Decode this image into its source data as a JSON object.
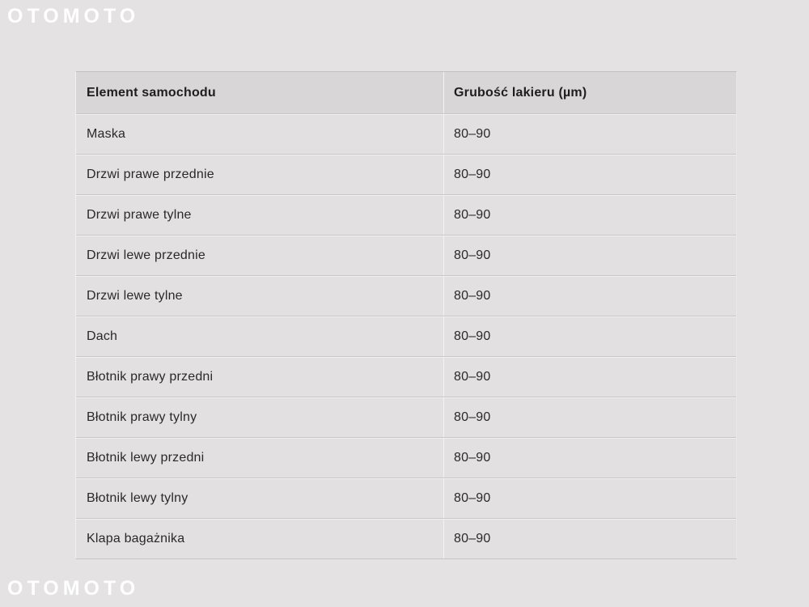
{
  "watermark": {
    "text": "OTOMOTO"
  },
  "table": {
    "columns": {
      "element": "Element samochodu",
      "value": "Grubość lakieru (µm)"
    },
    "rows": [
      {
        "element": "Maska",
        "value": "80–90"
      },
      {
        "element": "Drzwi prawe przednie",
        "value": "80–90"
      },
      {
        "element": "Drzwi prawe tylne",
        "value": "80–90"
      },
      {
        "element": "Drzwi lewe przednie",
        "value": "80–90"
      },
      {
        "element": "Drzwi lewe tylne",
        "value": "80–90"
      },
      {
        "element": "Dach",
        "value": "80–90"
      },
      {
        "element": "Błotnik prawy przedni",
        "value": "80–90"
      },
      {
        "element": "Błotnik prawy tylny",
        "value": "80–90"
      },
      {
        "element": "Błotnik lewy przedni",
        "value": "80–90"
      },
      {
        "element": "Błotnik lewy tylny",
        "value": "80–90"
      },
      {
        "element": "Klapa bagażnika",
        "value": "80–90"
      }
    ]
  },
  "colors": {
    "page_bg": "#e4e2e3",
    "header_bg": "#d8d6d7",
    "row_bg": "#e2e0e1",
    "separator": "#c8c6c7",
    "divider_light": "#f5f4f5",
    "text": "#2a292a",
    "watermark": "#fafafa"
  }
}
